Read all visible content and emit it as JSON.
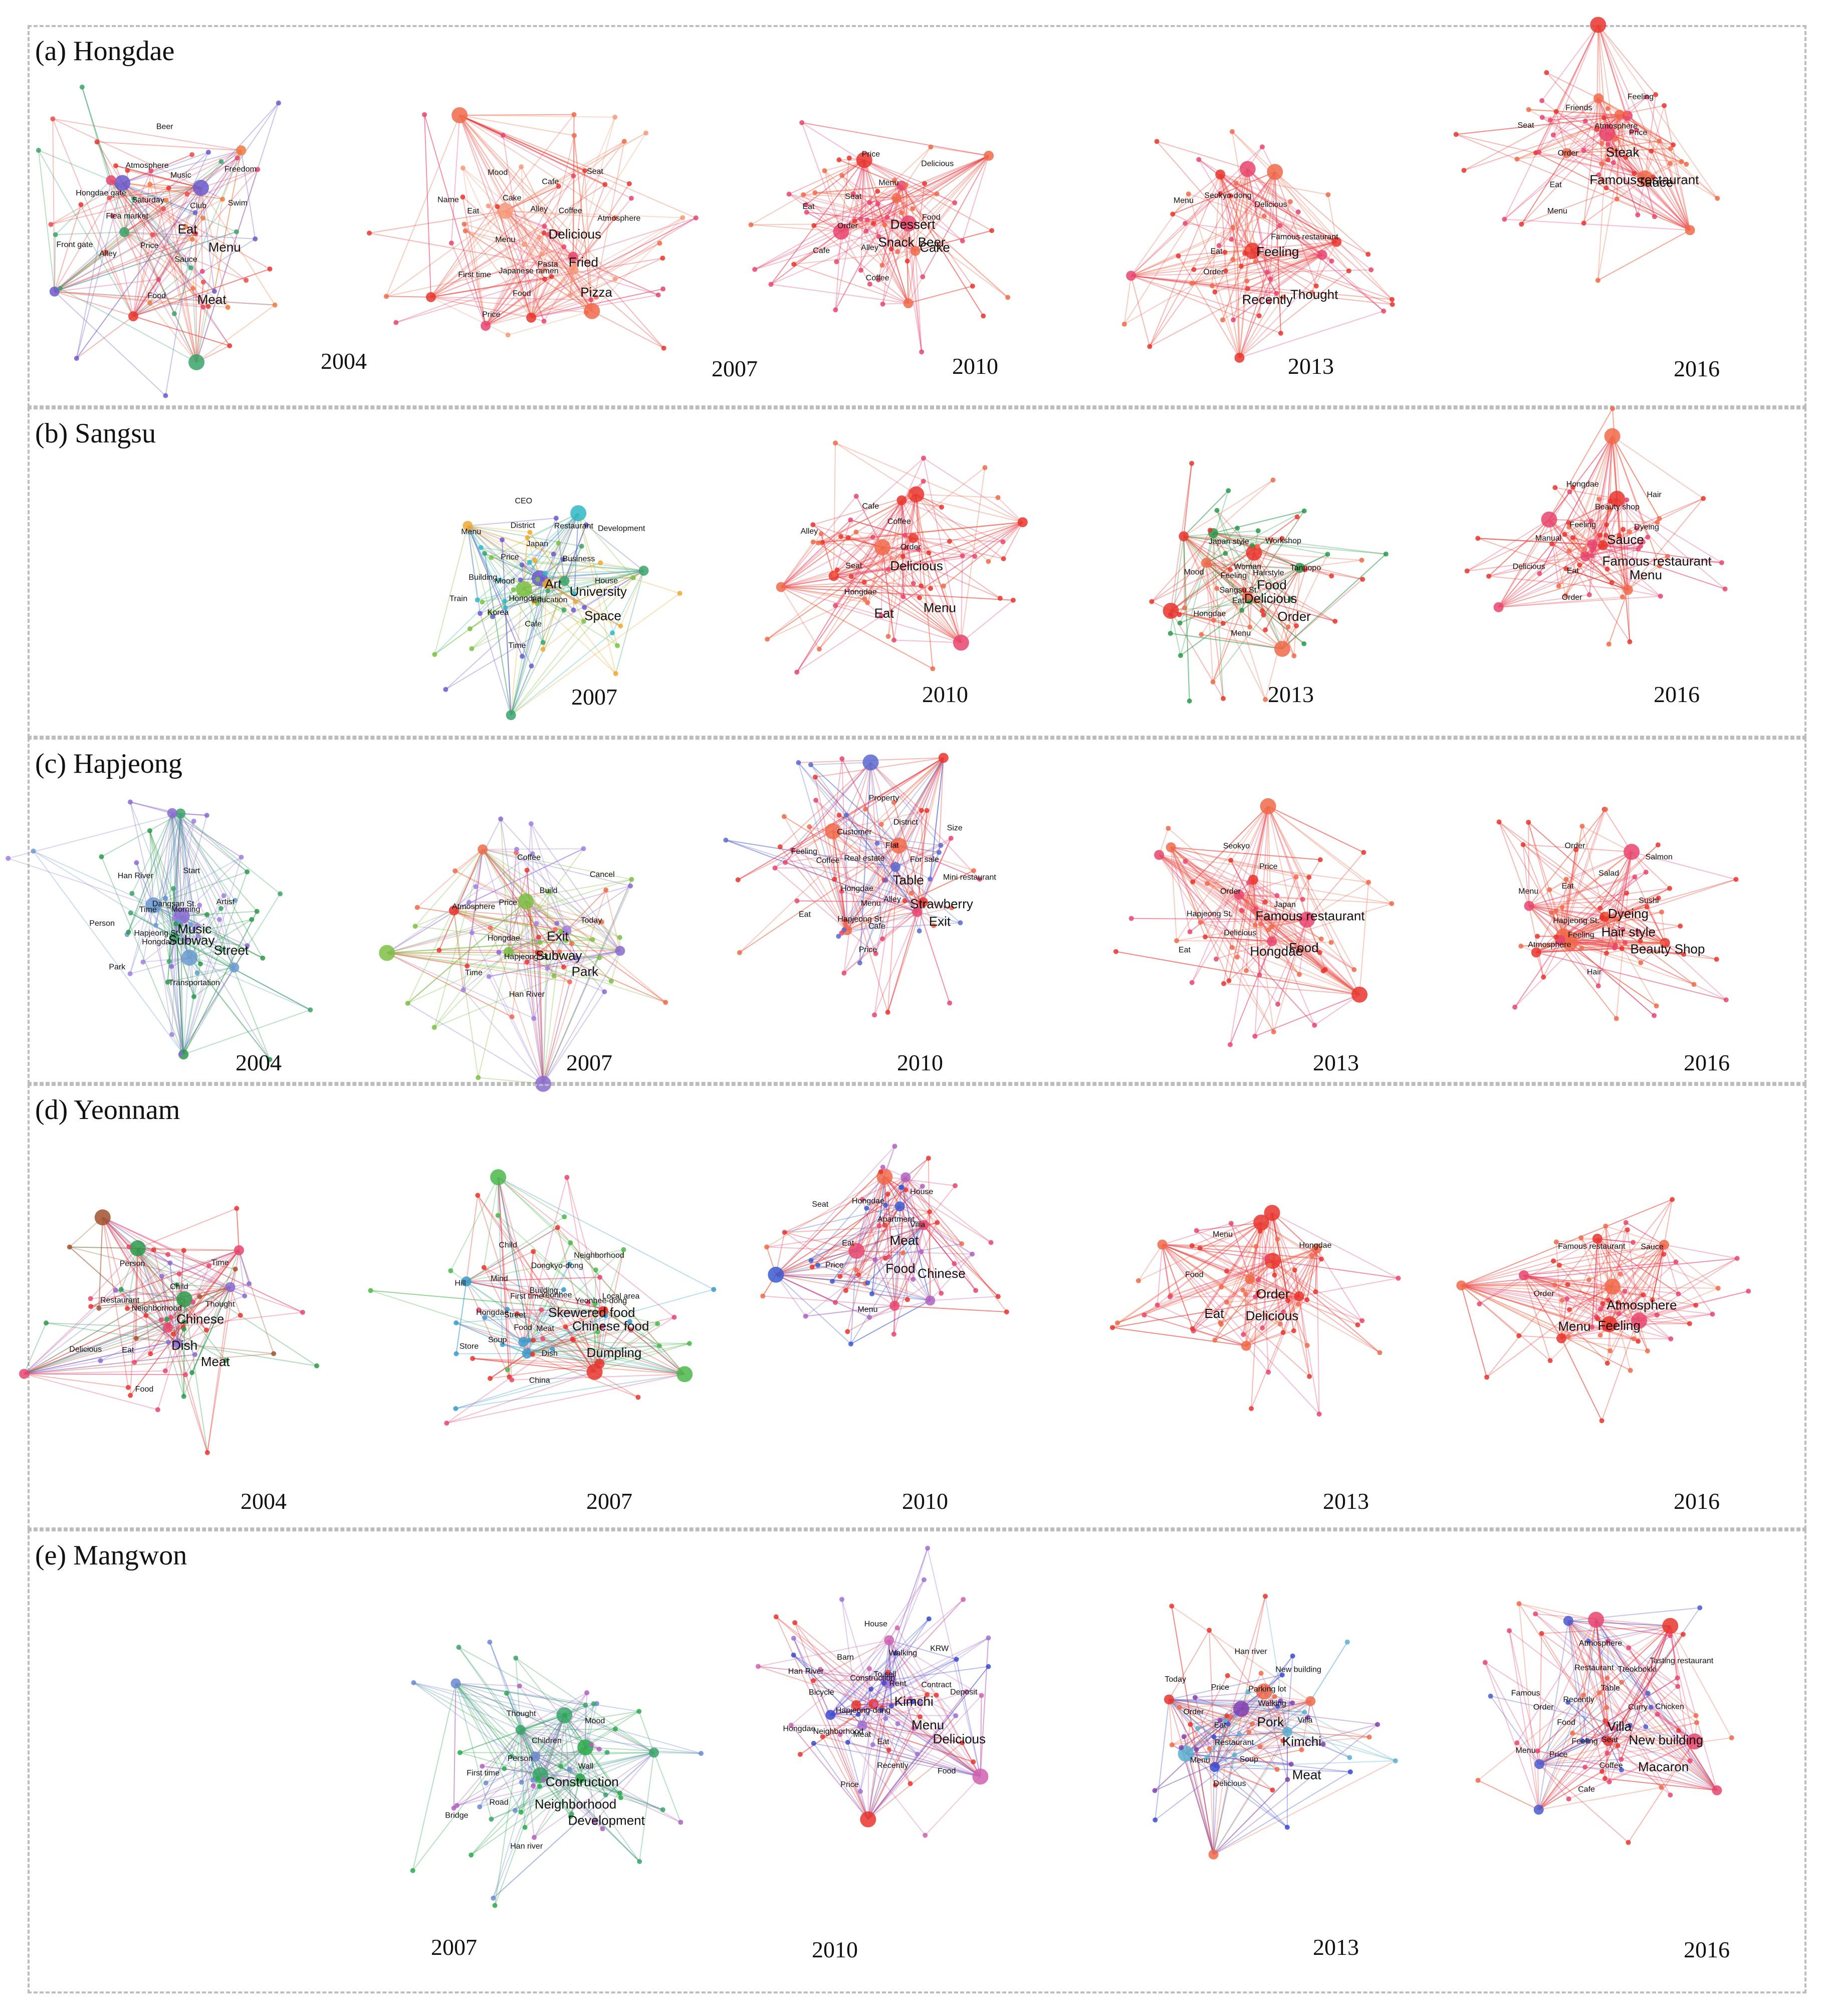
{
  "rows": [
    {
      "title": "(a) Hongdae",
      "networks": [
        {
          "year": "2004",
          "palette": [
            "#e8352d",
            "#ef4a4a",
            "#f07a3c",
            "#3aa36a",
            "#6a5acd",
            "#e8456f"
          ],
          "labels": [
            "Eat",
            "Menu",
            "Meat",
            "Sauce",
            "Food",
            "Price",
            "Alley",
            "Front gate",
            "Flea market",
            "Hongdae gate",
            "Saturday",
            "Atmosphere",
            "Beer",
            "Music",
            "Freedom",
            "Club",
            "Swim"
          ]
        },
        {
          "year": "2007",
          "palette": [
            "#e8352d",
            "#f06a4a",
            "#f39a7a",
            "#e8456f"
          ],
          "labels": [
            "Delicious",
            "Fried",
            "Pizza",
            "Pasta",
            "Food",
            "Price",
            "Japanese ramen",
            "First time",
            "Menu",
            "Eat",
            "Name",
            "Cake",
            "Mood",
            "Alley",
            "Cafe",
            "Seat",
            "Coffee",
            "Atmosphere"
          ]
        },
        {
          "year": "2010",
          "palette": [
            "#e8352d",
            "#f06a4a",
            "#e8456f"
          ],
          "labels": [
            "Dessert",
            "Cake",
            "Snack Beer",
            "Coffee",
            "Alley",
            "Cafe",
            "Order",
            "Eat",
            "Seat",
            "Price",
            "Menu",
            "Delicious",
            "Food"
          ]
        },
        {
          "year": "2013",
          "palette": [
            "#e8352d",
            "#f06a4a",
            "#e8456f"
          ],
          "labels": [
            "Feeling",
            "Thought",
            "Recently",
            "Order",
            "Eat",
            "Menu",
            "Seokyo-dong",
            "Delicious",
            "Famous restaurant"
          ]
        },
        {
          "year": "2016",
          "palette": [
            "#e8352d",
            "#e8456f",
            "#f06a4a"
          ],
          "labels": [
            "Steak",
            "Sauce",
            "Famous restaurant",
            "Menu",
            "Eat",
            "Order",
            "Seat",
            "Friends",
            "Atmosphere",
            "Feeling",
            "Price"
          ]
        }
      ]
    },
    {
      "title": "(b) Sangsu",
      "networks": [
        {
          "year": "",
          "labels": []
        },
        {
          "year": "2007",
          "palette": [
            "#7bc043",
            "#2fb8c4",
            "#f0a830",
            "#6a5acd",
            "#3aa36a"
          ],
          "labels": [
            "Art",
            "University",
            "Space",
            "Education",
            "Cafe",
            "Time",
            "Hongdae",
            "Korea",
            "Train",
            "Mood",
            "Building",
            "Menu",
            "Price",
            "District",
            "CEO",
            "Japan",
            "Restaurant",
            "Development",
            "Business",
            "House"
          ]
        },
        {
          "year": "2010",
          "palette": [
            "#e8352d",
            "#f06a4a",
            "#e8456f"
          ],
          "labels": [
            "Delicious",
            "Menu",
            "Eat",
            "Hongdae",
            "Seat",
            "Alley",
            "Cafe",
            "Coffee",
            "Order"
          ]
        },
        {
          "year": "2013",
          "palette": [
            "#e8352d",
            "#f06a4a",
            "#2a9a4a"
          ],
          "labels": [
            "Food",
            "Order",
            "Delicious",
            "Menu",
            "Eat",
            "Hongdae",
            "Sangsu St.",
            "Mood",
            "Feeling",
            "Japan style",
            "Woman",
            "Workshop",
            "Hairstyle",
            "Tanpopo"
          ]
        },
        {
          "year": "2016",
          "palette": [
            "#e8352d",
            "#e8456f",
            "#f06a4a"
          ],
          "labels": [
            "Sauce",
            "Menu",
            "Famous restaurant",
            "Order",
            "Eat",
            "Delicious",
            "Manual",
            "Feeling",
            "Hongdae",
            "Beauty shop",
            "Hair",
            "Dyeing"
          ]
        }
      ]
    },
    {
      "title": "(c) Hapjeong",
      "networks": [
        {
          "year": "2004",
          "palette": [
            "#3aa36a",
            "#8a6ad0",
            "#6a9ad0",
            "#2a9a4a",
            "#a080e0"
          ],
          "labels": [
            "Music",
            "Street",
            "Subway",
            "Transportation",
            "Hongdae",
            "Park",
            "Hapjeong St.",
            "Person",
            "Time",
            "Han River",
            "Dangsan St.",
            "Start",
            "Morning",
            "Artist"
          ]
        },
        {
          "year": "2007",
          "palette": [
            "#7bc043",
            "#8a6ad0",
            "#e8352d",
            "#f06a4a",
            "#a080e0"
          ],
          "labels": [
            "Exit",
            "Park",
            "Subway",
            "Han River",
            "Hapjeong St.",
            "Time",
            "Hongdae",
            "Atmosphere",
            "Price",
            "Coffee",
            "Build",
            "Cancel",
            "Today"
          ]
        },
        {
          "year": "2010",
          "palette": [
            "#e8456f",
            "#e8352d",
            "#f06a4a",
            "#5a6ad0"
          ],
          "labels": [
            "Table",
            "Strawberry",
            "Exit",
            "Alley",
            "Cafe",
            "Price",
            "Menu",
            "Hapjeong St.",
            "Eat",
            "Hongdae",
            "Coffee",
            "Feeling",
            "Real estate",
            "Customer",
            "Property",
            "Flat",
            "District",
            "Size",
            "For sale",
            "Mini restaurant"
          ]
        },
        {
          "year": "2013",
          "palette": [
            "#e8352d",
            "#f06a4a",
            "#e8456f"
          ],
          "labels": [
            "Famous restaurant",
            "Food",
            "Hongdae",
            "Delicious",
            "Eat",
            "Hapjeong St.",
            "Order",
            "Seokyo",
            "Price",
            "Japan"
          ]
        },
        {
          "year": "2016",
          "palette": [
            "#e8352d",
            "#e8456f",
            "#f06a4a"
          ],
          "labels": [
            "Dyeing",
            "Beauty Shop",
            "Hair style",
            "Hair",
            "Feeling",
            "Atmosphere",
            "Hapjeong St.",
            "Menu",
            "Eat",
            "Order",
            "Salad",
            "Salmon",
            "Sushi"
          ]
        }
      ]
    },
    {
      "title": "(d) Yeonnam",
      "networks": [
        {
          "year": "2004",
          "palette": [
            "#e8352d",
            "#8a6ad0",
            "#2a9a4a",
            "#a0522d",
            "#e8456f"
          ],
          "labels": [
            "Chinese",
            "Meat",
            "Dish",
            "Food",
            "Eat",
            "Delicious",
            "Restaurant",
            "Neighborhood",
            "Person",
            "Child",
            "Time",
            "Thought"
          ]
        },
        {
          "year": "2007",
          "palette": [
            "#e8352d",
            "#3a9ad0",
            "#4ab84a",
            "#e8456f"
          ],
          "labels": [
            "Skewered food",
            "Chinese food",
            "Dumpling",
            "Meat",
            "Dish",
            "China",
            "Food",
            "Soup",
            "Store",
            "Street",
            "Hongdae",
            "Hill",
            "First time",
            "Mind",
            "Child",
            "Building",
            "Dongkyo-dong",
            "Neighborhood",
            "Yeonhee",
            "Yeonhee-dong",
            "Local area"
          ]
        },
        {
          "year": "2010",
          "palette": [
            "#e8352d",
            "#f06a4a",
            "#e8456f",
            "#b060c0",
            "#3a5ad0"
          ],
          "labels": [
            "Meat",
            "Chinese",
            "Food",
            "Menu",
            "Price",
            "Eat",
            "Seat",
            "Hongdae",
            "Apartment",
            "House",
            "Villa"
          ]
        },
        {
          "year": "2013",
          "palette": [
            "#e8352d",
            "#f06a4a",
            "#e8456f"
          ],
          "labels": [
            "Order",
            "Delicious",
            "Eat",
            "Food",
            "Menu",
            "Hongdae"
          ]
        },
        {
          "year": "2016",
          "palette": [
            "#e8352d",
            "#e8456f",
            "#f06a4a"
          ],
          "labels": [
            "Atmosphere",
            "Feeling",
            "Menu",
            "Order",
            "Famous restaurant",
            "Sauce"
          ]
        }
      ]
    },
    {
      "title": "(e) Mangwon",
      "networks": [
        {
          "year": "",
          "labels": []
        },
        {
          "year": "2007",
          "palette": [
            "#2aaa4a",
            "#b060c0",
            "#6a8ad0",
            "#3aa36a"
          ],
          "labels": [
            "Construction",
            "Development",
            "Neighborhood",
            "Han river",
            "Road",
            "Bridge",
            "First time",
            "Person",
            "Thought",
            "Children",
            "Mood",
            "Wall"
          ]
        },
        {
          "year": "2010",
          "palette": [
            "#e8352d",
            "#d060b0",
            "#a070d0",
            "#3a4ad0"
          ],
          "labels": [
            "Kimchi",
            "Menu",
            "Delicious",
            "Food",
            "Eat",
            "Recently",
            "Price",
            "Meat",
            "Neighborhood",
            "Hongdae",
            "Hapjeong-dong",
            "Bicycle",
            "Han River",
            "Construction",
            "Barn",
            "House",
            "To sell",
            "Walking",
            "KRW",
            "Rent",
            "Contract",
            "Deposit"
          ]
        },
        {
          "year": "2013",
          "palette": [
            "#e8352d",
            "#f06a4a",
            "#8040b0",
            "#3a4ad0",
            "#5ab0d0"
          ],
          "labels": [
            "Pork",
            "Kimchi",
            "Meat",
            "Soup",
            "Delicious",
            "Restaurant",
            "Menu",
            "Eat",
            "Order",
            "Today",
            "Price",
            "Han river",
            "Parking lot",
            "New building",
            "Walking",
            "Villa"
          ]
        },
        {
          "year": "2016",
          "palette": [
            "#e8352d",
            "#f06a4a",
            "#e8456f",
            "#4a5ad0"
          ],
          "labels": [
            "Villa",
            "New building",
            "Macaron",
            "Seat",
            "Coffee",
            "Cafe",
            "Feeling",
            "Price",
            "Menu",
            "Food",
            "Order",
            "Famous",
            "Recently",
            "Restaurant",
            "Atmosphere",
            "Table",
            "Tteokbokki",
            "Tasting restaurant",
            "Curry",
            "Chicken"
          ]
        }
      ]
    }
  ]
}
